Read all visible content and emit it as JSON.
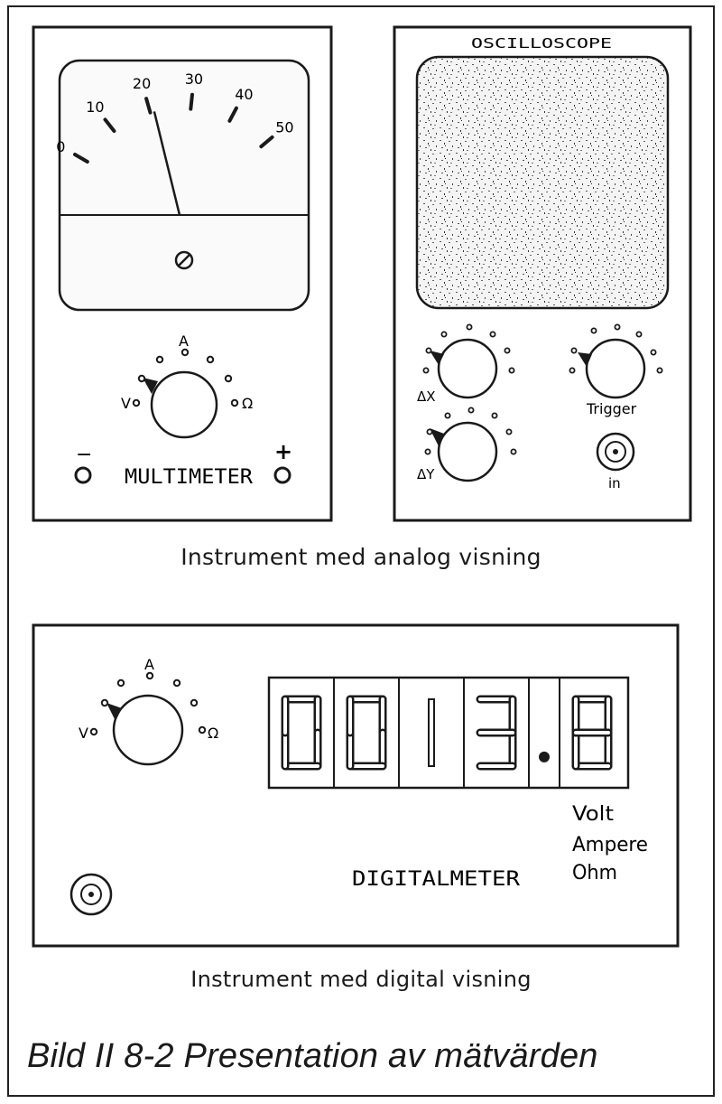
{
  "multimeter": {
    "scale_labels": [
      "0",
      "10",
      "20",
      "30",
      "40",
      "50"
    ],
    "needle_value": 21,
    "dial_labels": {
      "v": "V",
      "a": "A",
      "ohm": "Ω"
    },
    "terminal_minus": "−",
    "terminal_plus": "+",
    "name": "MULTIMETER"
  },
  "oscilloscope": {
    "title": "OSCILLOSCOPE",
    "knob_dx_label": "ΔX",
    "knob_dy_label": "ΔY",
    "trigger_label": "Trigger",
    "input_label": "in"
  },
  "analog_caption": "Instrument med analog visning",
  "digitalmeter": {
    "digits": [
      "0",
      "0",
      "1",
      "3",
      ".",
      "8"
    ],
    "reading": "0013.8",
    "units": [
      "Volt",
      "Ampere",
      "Ohm"
    ],
    "name": "DIGITALMETER",
    "dial_labels": {
      "v": "V",
      "a": "A",
      "ohm": "Ω"
    }
  },
  "digital_caption": "Instrument med digital visning",
  "figure_title": "Bild II 8-2  Presentation av mätvärden"
}
